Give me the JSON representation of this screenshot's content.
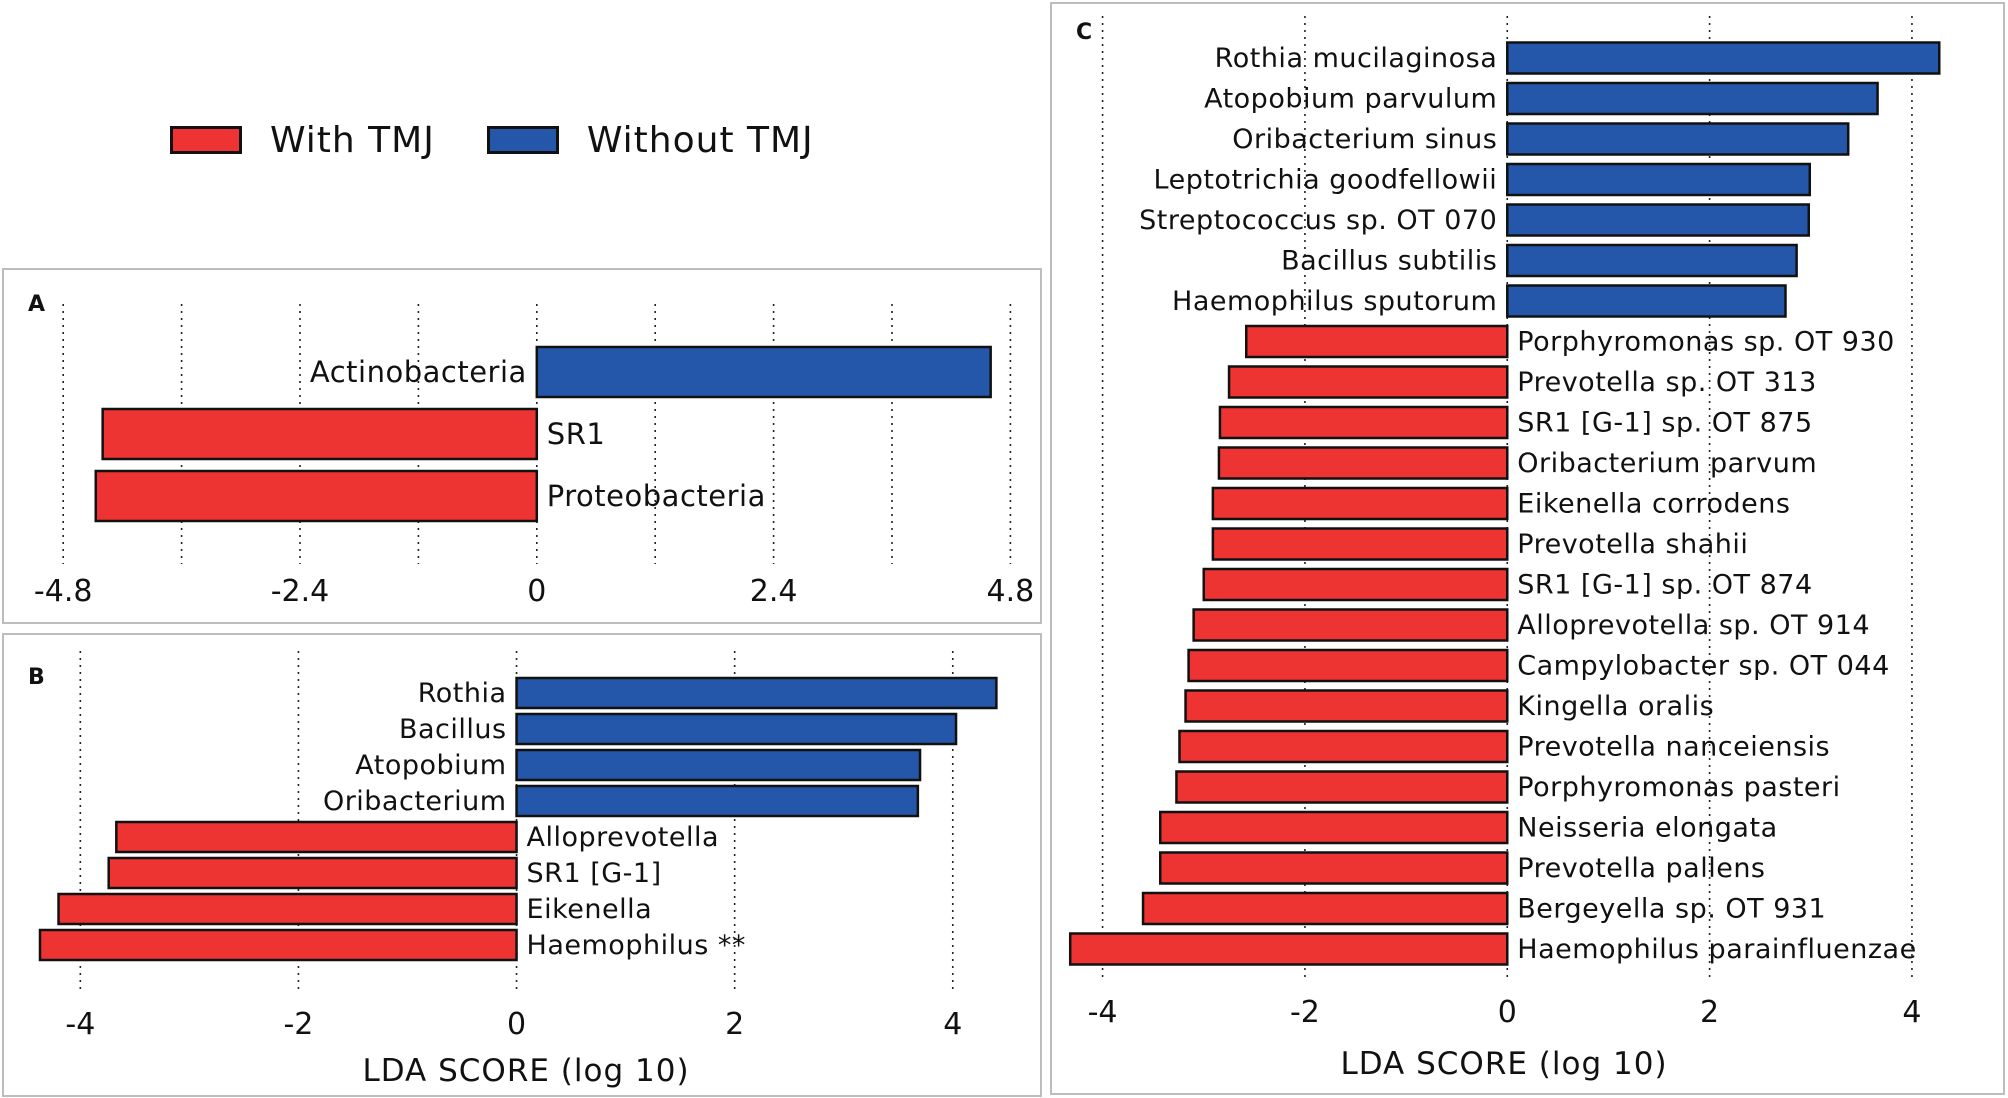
{
  "legend": {
    "items": [
      {
        "label": "With TMJ",
        "color": "#ee3333"
      },
      {
        "label": "Without TMJ",
        "color": "#2457aa"
      }
    ]
  },
  "colors": {
    "with_tmj": "#ee3333",
    "without_tmj": "#2457aa",
    "bar_edge": "#111111"
  },
  "chart_data": [
    {
      "panel": "A",
      "type": "bar",
      "orientation": "horizontal",
      "xlabel": "",
      "xlim": [
        -5.4,
        5.1
      ],
      "xticks": [
        -4.8,
        -2.4,
        0,
        2.4,
        4.8
      ],
      "xtick_labels": [
        "-4.8",
        "-2.4",
        "0",
        "2.4",
        "4.8"
      ],
      "gridlines": [
        -4.8,
        -3.6,
        -2.4,
        -1.2,
        0,
        1.2,
        2.4,
        3.6,
        4.8
      ],
      "bars": [
        {
          "label": "Actinobacteria",
          "value": 4.6,
          "group": "Without TMJ"
        },
        {
          "label": "SR1",
          "value": -4.4,
          "group": "With TMJ"
        },
        {
          "label": "Proteobacteria",
          "value": -4.47,
          "group": "With TMJ"
        }
      ]
    },
    {
      "panel": "B",
      "type": "bar",
      "orientation": "horizontal",
      "xlabel": "LDA SCORE (log 10)",
      "xlim": [
        -4.7,
        4.8
      ],
      "xticks": [
        -4,
        -2,
        0,
        2,
        4
      ],
      "xtick_labels": [
        "-4",
        "-2",
        "0",
        "2",
        "4"
      ],
      "gridlines": [
        -4,
        -2,
        0,
        2,
        4
      ],
      "bars": [
        {
          "label": "Rothia",
          "value": 4.4,
          "group": "Without TMJ"
        },
        {
          "label": "Bacillus",
          "value": 4.03,
          "group": "Without TMJ"
        },
        {
          "label": "Atopobium",
          "value": 3.7,
          "group": "Without TMJ"
        },
        {
          "label": "Oribacterium",
          "value": 3.68,
          "group": "Without TMJ"
        },
        {
          "label": "Alloprevotella",
          "value": -3.67,
          "group": "With TMJ"
        },
        {
          "label": "SR1 [G-1]",
          "value": -3.74,
          "group": "With TMJ"
        },
        {
          "label": "Eikenella",
          "value": -4.2,
          "group": "With TMJ"
        },
        {
          "label": "Haemophilus **",
          "value": -4.37,
          "group": "With TMJ"
        }
      ]
    },
    {
      "panel": "C",
      "type": "bar",
      "orientation": "horizontal",
      "xlabel": "LDA SCORE (log 10)",
      "xlim": [
        -4.5,
        4.9
      ],
      "xticks": [
        -4,
        -2,
        0,
        2,
        4
      ],
      "xtick_labels": [
        "-4",
        "-2",
        "0",
        "2",
        "4"
      ],
      "gridlines": [
        -4,
        -2,
        0,
        2,
        4
      ],
      "bars": [
        {
          "label": "Rothia mucilaginosa",
          "value": 4.27,
          "group": "Without TMJ"
        },
        {
          "label": "Atopobium parvulum",
          "value": 3.66,
          "group": "Without TMJ"
        },
        {
          "label": "Oribacterium sinus",
          "value": 3.37,
          "group": "Without TMJ"
        },
        {
          "label": "Leptotrichia goodfellowii",
          "value": 2.99,
          "group": "Without TMJ"
        },
        {
          "label": "Streptococcus sp. OT 070",
          "value": 2.98,
          "group": "Without TMJ"
        },
        {
          "label": "Bacillus subtilis",
          "value": 2.86,
          "group": "Without TMJ"
        },
        {
          "label": "Haemophilus sputorum",
          "value": 2.75,
          "group": "Without TMJ"
        },
        {
          "label": "Porphyromonas sp. OT 930",
          "value": -2.58,
          "group": "With TMJ"
        },
        {
          "label": "Prevotella sp. OT 313",
          "value": -2.75,
          "group": "With TMJ"
        },
        {
          "label": "SR1 [G-1] sp. OT 875",
          "value": -2.84,
          "group": "With TMJ"
        },
        {
          "label": "Oribacterium parvum",
          "value": -2.85,
          "group": "With TMJ"
        },
        {
          "label": "Eikenella corrodens",
          "value": -2.91,
          "group": "With TMJ"
        },
        {
          "label": "Prevotella shahii",
          "value": -2.91,
          "group": "With TMJ"
        },
        {
          "label": "SR1 [G-1] sp. OT 874",
          "value": -3.0,
          "group": "With TMJ"
        },
        {
          "label": "Alloprevotella sp. OT 914",
          "value": -3.1,
          "group": "With TMJ"
        },
        {
          "label": "Campylobacter sp. OT 044",
          "value": -3.15,
          "group": "With TMJ"
        },
        {
          "label": "Kingella oralis",
          "value": -3.18,
          "group": "With TMJ"
        },
        {
          "label": "Prevotella nanceiensis",
          "value": -3.24,
          "group": "With TMJ"
        },
        {
          "label": "Porphyromonas pasteri",
          "value": -3.27,
          "group": "With TMJ"
        },
        {
          "label": "Neisseria elongata",
          "value": -3.43,
          "group": "With TMJ"
        },
        {
          "label": "Prevotella pallens",
          "value": -3.43,
          "group": "With TMJ"
        },
        {
          "label": "Bergeyella sp. OT 931",
          "value": -3.6,
          "group": "With TMJ"
        },
        {
          "label": "Haemophilus parainfluenzae",
          "value": -4.32,
          "group": "With TMJ"
        }
      ]
    }
  ]
}
